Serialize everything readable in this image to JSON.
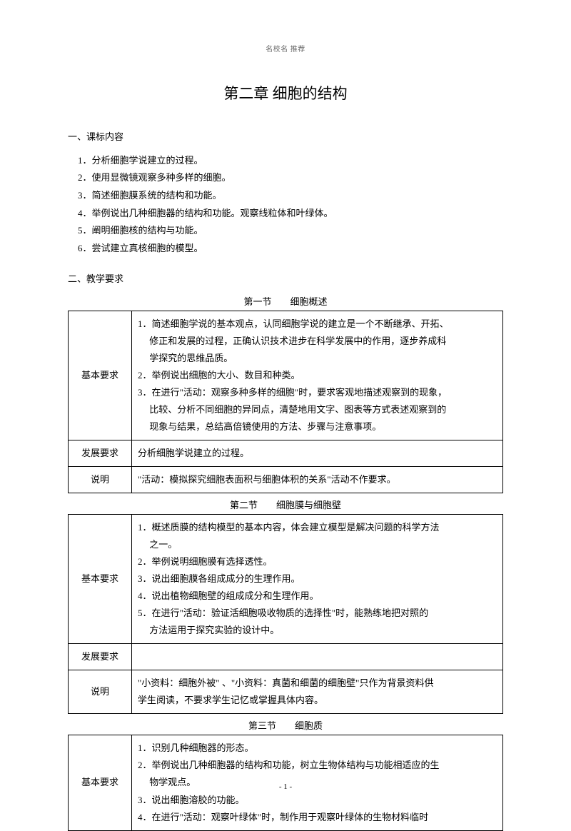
{
  "header": "名校名 推荐",
  "title": "第二章 细胞的结构",
  "section1": {
    "heading": "一、课标内容",
    "items": [
      "1．分析细胞学说建立的过程。",
      "2．使用显微镜观察多种多样的细胞。",
      "3．简述细胞膜系统的结构和功能。",
      "4．举例说出几种细胞器的结构和功能。观察线粒体和叶绿体。",
      "5．阐明细胞核的结构与功能。",
      "6．尝试建立真核细胞的模型。"
    ]
  },
  "section2": {
    "heading": "二、教学要求"
  },
  "table1": {
    "title": "第一节　　细胞概述",
    "rows": [
      {
        "label": "基本要求",
        "lines": [
          "1．简述细胞学说的基本观点，认同细胞学说的建立是一个不断继承、开拓、",
          "　 修正和发展的过程，正确认识技术进步在科学发展中的作用，逐步养成科",
          "　 学探究的思维品质。",
          "2．举例说出细胞的大小、数目和种类。",
          "3．在进行\"活动：观察多种多样的细胞\"时，要求客观地描述观察到的现象，",
          "　 比较、分析不同细胞的异同点，清楚地用文字、图表等方式表述观察到的",
          "　 现象与结果，总结高倍镜使用的方法、步骤与注意事项。"
        ]
      },
      {
        "label": "发展要求",
        "lines": [
          "分析细胞学说建立的过程。"
        ]
      },
      {
        "label": "说明",
        "lines": [
          "\"活动：模拟探究细胞表面积与细胞体积的关系\"活动不作要求。"
        ]
      }
    ]
  },
  "table2": {
    "title": "第二节　　细胞膜与细胞壁",
    "rows": [
      {
        "label": "基本要求",
        "lines": [
          "1．概述质膜的结构模型的基本内容，体会建立模型是解决问题的科学方法",
          "　 之一。",
          "2．举例说明细胞膜有选择透性。",
          "3．说出细胞膜各组成成分的生理作用。",
          "4．说出植物细胞壁的组成成分和生理作用。",
          "5．在进行\"活动：验证活细胞吸收物质的选择性\"时，能熟练地把对照的",
          "　 方法运用于探究实验的设计中。"
        ]
      },
      {
        "label": "发展要求",
        "lines": [
          ""
        ]
      },
      {
        "label": "说明",
        "lines": [
          "\"小资料：细胞外被\" 、\"小资料：真菌和细菌的细胞壁\"只作为背景资料供",
          "学生阅读，不要求学生记忆或掌握具体内容。"
        ]
      }
    ]
  },
  "table3": {
    "title": "第三节　　细胞质",
    "rows": [
      {
        "label": "基本要求",
        "lines": [
          "1．识别几种细胞器的形态。",
          "2．举例说出几种细胞器的结构和功能，树立生物体结构与功能相适应的生",
          "　 物学观点。",
          "3．说出细胞溶胶的功能。",
          "4．在进行\"活动：观察叶绿体\"时，制作用于观察叶绿体的生物材料临时"
        ]
      }
    ]
  },
  "footer": "- 1 -"
}
